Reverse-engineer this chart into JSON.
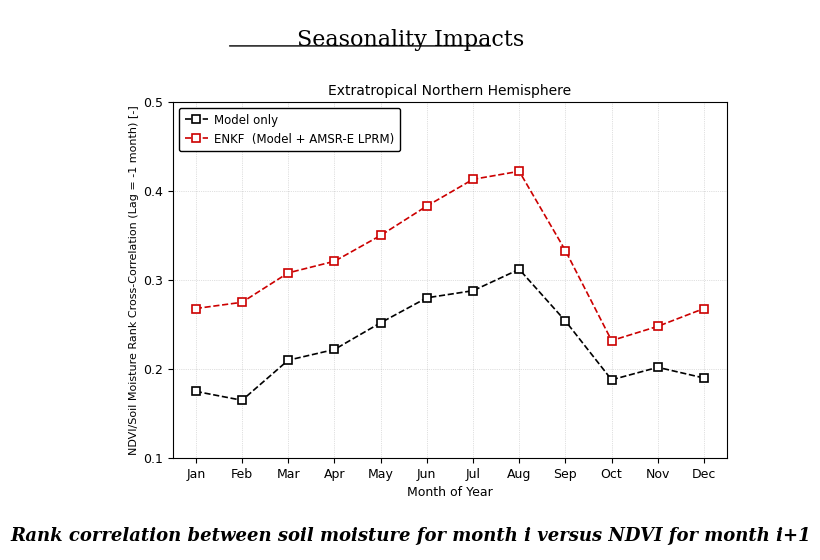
{
  "title": "Seasonality Impacts",
  "subtitle": "Extratropical Northern Hemisphere",
  "xlabel": "Month of Year",
  "ylabel": "NDVI/Soil Moisture Rank Cross-Correlation (Lag = -1 month) [-]",
  "months": [
    "Jan",
    "Feb",
    "Mar",
    "Apr",
    "May",
    "Jun",
    "Jul",
    "Aug",
    "Sep",
    "Oct",
    "Nov",
    "Dec"
  ],
  "model_only": [
    0.175,
    0.165,
    0.21,
    0.222,
    0.252,
    0.28,
    0.288,
    0.312,
    0.254,
    0.188,
    0.202,
    0.19
  ],
  "enkf": [
    0.268,
    0.275,
    0.308,
    0.321,
    0.35,
    0.383,
    0.413,
    0.422,
    0.333,
    0.232,
    0.248,
    0.268
  ],
  "model_color": "#000000",
  "enkf_color": "#cc0000",
  "ylim": [
    0.1,
    0.5
  ],
  "yticks": [
    0.1,
    0.2,
    0.3,
    0.4,
    0.5
  ],
  "legend_model": "Model only",
  "legend_enkf": "ENKF  (Model + AMSR-E LPRM)",
  "caption": "Rank correlation between soil moisture for month i versus NDVI for month i+1",
  "title_fontsize": 16,
  "subtitle_fontsize": 10,
  "label_fontsize": 8,
  "tick_fontsize": 9,
  "legend_fontsize": 8.5,
  "caption_fontsize": 13
}
